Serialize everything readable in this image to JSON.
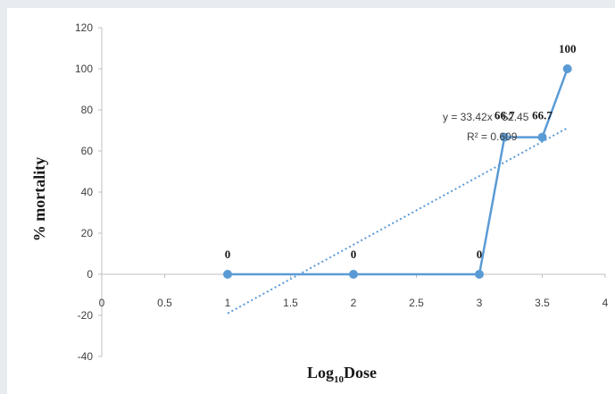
{
  "chart_data": {
    "type": "line",
    "xlabel_main": "Log",
    "xlabel_sub": "10",
    "xlabel_tail": "Dose",
    "ylabel": "% mortality",
    "xlim": [
      0,
      4
    ],
    "ylim": [
      -40,
      120
    ],
    "x_ticks": [
      "0",
      "0.5",
      "1",
      "1.5",
      "2",
      "2.5",
      "3",
      "3.5",
      "4"
    ],
    "y_ticks": [
      "120",
      "100",
      "80",
      "60",
      "40",
      "20",
      "0",
      "-20",
      "-40"
    ],
    "series": [
      {
        "x": [
          1,
          2,
          3,
          3.2,
          3.5,
          3.7
        ],
        "y": [
          0,
          0,
          0,
          66.7,
          66.7,
          100
        ],
        "labels": [
          "0",
          "0",
          "0",
          "66.7",
          "66.7",
          "100"
        ],
        "color": "#5b9bd5"
      }
    ],
    "trendline": {
      "style": "dotted",
      "color": "#5b9bd5",
      "slope": 33.42,
      "intercept": -52.45,
      "x_range": [
        1,
        3.7
      ],
      "equation": "y = 33.42x - 52.45",
      "r2": "R² = 0.609"
    },
    "grid": false
  }
}
